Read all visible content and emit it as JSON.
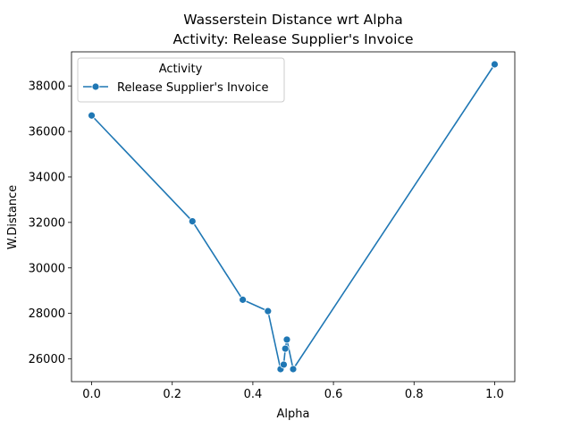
{
  "chart_data": {
    "type": "line",
    "title": "Wasserstein Distance wrt Alpha",
    "subtitle": "Activity: Release Supplier's Invoice",
    "xlabel": "Alpha",
    "ylabel": "W.Distance",
    "xlim": [
      -0.05,
      1.05
    ],
    "ylim": [
      25000,
      39500
    ],
    "xticks": [
      0.0,
      0.2,
      0.4,
      0.6,
      0.8,
      1.0
    ],
    "xtick_labels": [
      "0.0",
      "0.2",
      "0.4",
      "0.6",
      "0.8",
      "1.0"
    ],
    "yticks": [
      26000,
      28000,
      30000,
      32000,
      34000,
      36000,
      38000
    ],
    "ytick_labels": [
      "26000",
      "28000",
      "30000",
      "32000",
      "34000",
      "36000",
      "38000"
    ],
    "grid": false,
    "legend": {
      "title": "Activity",
      "placement": "top-left"
    },
    "series": [
      {
        "name": "Release Supplier's Invoice",
        "color": "#1f77b4",
        "marker": "circle",
        "x": [
          0.0,
          0.25,
          0.375,
          0.4375,
          0.46875,
          0.4766,
          0.4805,
          0.4844,
          0.5,
          1.0
        ],
        "y": [
          36700,
          32050,
          28600,
          28100,
          25550,
          25750,
          26450,
          26850,
          25550,
          38950
        ]
      }
    ]
  }
}
